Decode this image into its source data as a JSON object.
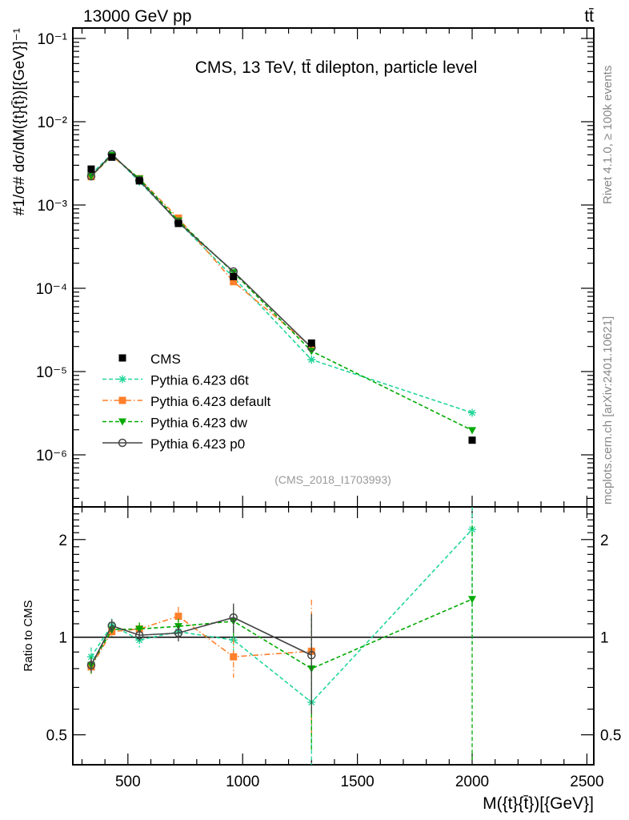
{
  "header": {
    "left": "13000 GeV pp",
    "right": "tt̄"
  },
  "side_labels": {
    "rivet": "Rivet 4.1.0, ≥ 100k events",
    "mcplots": "mcplots.cern.ch [arXiv:2401.10621]"
  },
  "chart_data": [
    {
      "type": "line",
      "panel": "main",
      "title": "CMS, 13 TeV, tt̄ dilepton, particle level",
      "analysis_id": "(CMS_2018_I1703993)",
      "xlabel": "M({t}{t̄})[{GeV}]",
      "ylabel": "#1/σ# dσ/dM({t}{t̄})[{GeV}]⁻¹",
      "xlim": [
        260,
        2530
      ],
      "ylim": [
        2.4e-07,
        0.133
      ],
      "yscale": "log",
      "x": [
        340,
        430,
        550,
        720,
        960,
        1300,
        2000
      ],
      "y_tick_labels": [
        "10⁻¹",
        "10⁻²",
        "10⁻³",
        "10⁻⁴",
        "10⁻⁵",
        "10⁻⁶"
      ],
      "legend_position": "lower-left",
      "series": [
        {
          "name": "CMS",
          "color": "#000000",
          "marker": "square",
          "values": [
            0.0027,
            0.00375,
            0.00195,
            0.0006,
            0.000138,
            2.2e-05,
            1.5e-06
          ]
        },
        {
          "name": "Pythia 6.423 d6t",
          "color": "#22d59a",
          "marker": "asterisk",
          "dash": "dashed",
          "values": [
            0.00235,
            0.00409,
            0.00191,
            0.000624,
            0.000135,
            1.39e-05,
            3.2e-06
          ]
        },
        {
          "name": "Pythia 6.423 default",
          "color": "#ff7f2a",
          "marker": "square",
          "dash": "dashdot",
          "values": [
            0.00219,
            0.0039,
            0.00207,
            0.000696,
            0.00012,
            1.99e-05,
            null
          ]
        },
        {
          "name": "Pythia 6.423 dw",
          "color": "#00aa00",
          "marker": "triangle-down",
          "dash": "dashed",
          "values": [
            0.00221,
            0.00396,
            0.00207,
            0.000648,
            0.000155,
            1.76e-05,
            1.97e-06
          ]
        },
        {
          "name": "Pythia 6.423 p0",
          "color": "#444444",
          "marker": "open-circle",
          "dash": "solid",
          "values": [
            0.00221,
            0.00407,
            0.00198,
            0.000618,
            0.000159,
            1.94e-05,
            null
          ]
        }
      ]
    },
    {
      "type": "line",
      "panel": "ratio",
      "ylabel": "Ratio to CMS",
      "xlabel": "M({t}{t̄})[{GeV}]",
      "xlim": [
        260,
        2530
      ],
      "ylim": [
        0.4,
        2.5
      ],
      "yscale": "log",
      "x_tick_labels": [
        "500",
        "1000",
        "1500",
        "2000",
        "2500"
      ],
      "y_tick_labels": [
        "0.5",
        "1",
        "2"
      ],
      "x": [
        340,
        430,
        550,
        720,
        960,
        1300,
        2000
      ],
      "series": [
        {
          "name": "Pythia 6.423 d6t",
          "color": "#22d59a",
          "values": [
            0.87,
            1.09,
            0.98,
            1.04,
            0.98,
            0.63,
            2.15
          ],
          "errors": [
            0.06,
            0.05,
            0.05,
            0.04,
            0.08,
            0.3,
            1.2
          ]
        },
        {
          "name": "Pythia 6.423 default",
          "color": "#ff7f2a",
          "values": [
            0.81,
            1.04,
            1.06,
            1.16,
            0.87,
            0.905,
            null
          ],
          "errors": [
            0.04,
            0.04,
            0.05,
            0.08,
            0.12,
            0.4,
            null
          ]
        },
        {
          "name": "Pythia 6.423 dw",
          "color": "#00aa00",
          "values": [
            0.82,
            1.056,
            1.06,
            1.08,
            1.12,
            0.8,
            1.31
          ],
          "errors": [
            0.05,
            0.05,
            0.05,
            0.06,
            0.12,
            0.35,
            0.9
          ]
        },
        {
          "name": "Pythia 6.423 p0",
          "color": "#444444",
          "values": [
            0.82,
            1.085,
            1.014,
            1.03,
            1.15,
            0.88,
            null
          ],
          "errors": [
            0.04,
            0.05,
            0.04,
            0.06,
            0.12,
            0.3,
            null
          ]
        }
      ]
    }
  ]
}
